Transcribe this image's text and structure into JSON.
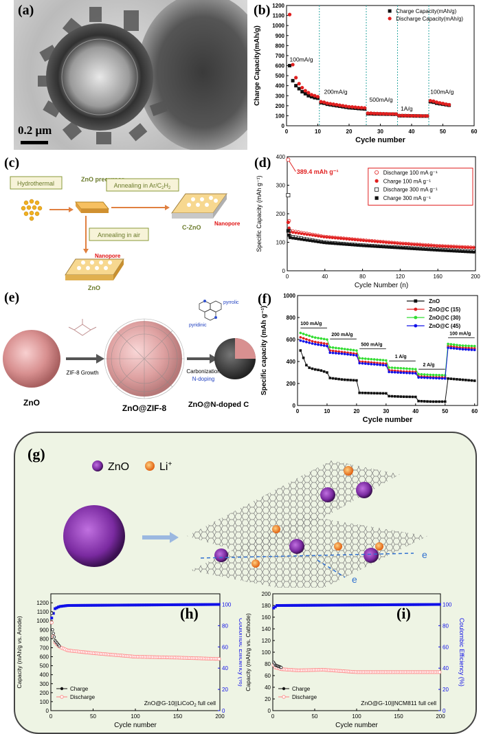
{
  "figure": {
    "labels": {
      "a": "(a)",
      "b": "(b)",
      "c": "(c)",
      "d": "(d)",
      "e": "(e)",
      "f": "(f)",
      "g": "(g)",
      "h": "(h)",
      "i": "(i)"
    },
    "scale_bar": "0.2 μm",
    "schematic_c": {
      "hydrothermal": "Hydrothermal",
      "zno_precursor": "ZnO precursor",
      "annealing_ar": "Annealing in Ar/C",
      "annealing_ar_sub1": "2",
      "annealing_ar_mid": "H",
      "annealing_ar_sub2": "2",
      "annealing_air": "Annealing in air",
      "nanopore1": "Nanopore",
      "nanopore2": "Nanopore",
      "c_zno": "C-ZnO",
      "zno": "ZnO"
    },
    "schematic_e": {
      "zno": "ZnO",
      "zif_growth": "ZIF-8 Growth",
      "zno_zif": "ZnO@ZIF-8",
      "carbonization": "Carbonization",
      "n_doping": "N-doping",
      "pyrrolic": "pyrrolic",
      "pyridinic": "pyridinic",
      "zno_ndc": "ZnO@N-doped C"
    },
    "schematic_g": {
      "legend_zno": "ZnO",
      "legend_li": "Li",
      "legend_li_sup": "+",
      "e1": "e",
      "e2": "e"
    }
  },
  "colors": {
    "red": "#e02020",
    "black": "#111111",
    "blue": "#1010e8",
    "green": "#33dd33",
    "cyan": "#3aa",
    "teal": "#2aa6a0",
    "panelBg": "#eef4e4"
  },
  "chart_data": [
    {
      "id": "b",
      "type": "scatter",
      "title": "",
      "xlabel": "Cycle number",
      "ylabel": "Charge Capacity(mAh/g)",
      "xlim": [
        0,
        60
      ],
      "ylim": [
        0,
        1200
      ],
      "xticks": [
        0,
        10,
        20,
        30,
        40,
        50,
        60
      ],
      "yticks": [
        0,
        100,
        200,
        300,
        400,
        500,
        600,
        700,
        800,
        900,
        1000,
        1100,
        1200
      ],
      "series": [
        {
          "name": "Charge Capacity(mAh/g)",
          "x": [
            1,
            2,
            3,
            4,
            5,
            6,
            7,
            8,
            9,
            10,
            11,
            12,
            13,
            14,
            15,
            16,
            17,
            18,
            19,
            20,
            21,
            22,
            23,
            24,
            25,
            26,
            27,
            28,
            29,
            30,
            31,
            32,
            33,
            34,
            35,
            36,
            37,
            38,
            39,
            40,
            41,
            42,
            43,
            44,
            45,
            46,
            47,
            48,
            49,
            50,
            51,
            52
          ],
          "y": [
            600,
            450,
            400,
            370,
            340,
            320,
            300,
            290,
            280,
            275,
            230,
            225,
            215,
            210,
            205,
            200,
            195,
            190,
            185,
            180,
            178,
            175,
            172,
            170,
            168,
            120,
            120,
            118,
            118,
            117,
            117,
            116,
            116,
            115,
            115,
            100,
            100,
            100,
            99,
            99,
            98,
            98,
            97,
            97,
            97,
            240,
            235,
            225,
            220,
            215,
            210,
            205
          ]
        },
        {
          "name": "Discharge Capacity(mAh/g)",
          "x": [
            1,
            2,
            3,
            4,
            5,
            6,
            7,
            8,
            9,
            10,
            11,
            12,
            13,
            14,
            15,
            16,
            17,
            18,
            19,
            20,
            21,
            22,
            23,
            24,
            25,
            26,
            27,
            28,
            29,
            30,
            31,
            32,
            33,
            34,
            35,
            36,
            37,
            38,
            39,
            40,
            41,
            42,
            43,
            44,
            45,
            46,
            47,
            48,
            49,
            50,
            51,
            52
          ],
          "y": [
            1110,
            610,
            480,
            420,
            380,
            350,
            330,
            310,
            300,
            290,
            240,
            235,
            225,
            220,
            215,
            210,
            205,
            200,
            195,
            190,
            188,
            185,
            182,
            180,
            178,
            125,
            125,
            123,
            122,
            121,
            120,
            119,
            118,
            118,
            117,
            102,
            102,
            101,
            101,
            100,
            100,
            99,
            99,
            98,
            98,
            250,
            245,
            235,
            228,
            222,
            215,
            210
          ]
        }
      ],
      "annotations": [
        "100mA/g",
        "200mA/g",
        "500mA/g",
        "1A/g",
        "100mA/g"
      ],
      "dividers": [
        10.5,
        25.5,
        35.5,
        45.5
      ]
    },
    {
      "id": "d",
      "type": "scatter",
      "xlabel": "Cycle Number (n)",
      "ylabel": "Specific Capacity (mAh g⁻¹)",
      "xlim": [
        0,
        200
      ],
      "ylim": [
        0,
        400
      ],
      "xticks": [
        0,
        40,
        80,
        120,
        160,
        200
      ],
      "yticks": [
        0,
        100,
        200,
        300,
        400
      ],
      "annotation": "389.4 mAh g⁻¹",
      "series": [
        {
          "name": "Discharge 100 mA g⁻¹",
          "marker": "open-circle",
          "color": "#e02020",
          "start": 389.4,
          "second": 175,
          "plateau": [
            140,
            120,
            108,
            97,
            88,
            82
          ]
        },
        {
          "name": "Charge 100 mA g⁻¹",
          "marker": "filled-circle",
          "color": "#e02020",
          "start": 170,
          "second": 150,
          "plateau": [
            135,
            118,
            106,
            95,
            86,
            80
          ]
        },
        {
          "name": "Discharge 300 mA g⁻¹",
          "marker": "open-square",
          "color": "#111111",
          "start": 265,
          "second": 140,
          "plateau": [
            120,
            100,
            90,
            82,
            75,
            68
          ]
        },
        {
          "name": "Charge 300 mA g⁻¹",
          "marker": "filled-square",
          "color": "#111111",
          "start": 140,
          "second": 125,
          "plateau": [
            115,
            98,
            88,
            80,
            72,
            65
          ]
        }
      ],
      "plateau_x": [
        5,
        40,
        80,
        120,
        160,
        200
      ]
    },
    {
      "id": "f",
      "type": "line",
      "xlabel": "Cycle number",
      "ylabel": "Specific capacity (mAh g⁻¹)",
      "xlim": [
        0,
        61
      ],
      "ylim": [
        0,
        1000
      ],
      "xticks": [
        0,
        10,
        20,
        30,
        40,
        50,
        60
      ],
      "yticks": [
        0,
        200,
        400,
        600,
        800,
        1000
      ],
      "rate_labels": [
        "100 mA/g",
        "200 mA/g",
        "500 mA/g",
        "1 A/g",
        "2 A/g",
        "100 mA/g"
      ],
      "steps": [
        [
          1,
          10
        ],
        [
          11,
          20
        ],
        [
          21,
          30
        ],
        [
          31,
          40
        ],
        [
          41,
          50
        ],
        [
          51,
          60
        ]
      ],
      "series": [
        {
          "name": "ZnO",
          "color": "#111111",
          "levels": [
            [
              500,
              350,
              330,
              320,
              300
            ],
            [
              250,
              235,
              228
            ],
            [
              115,
              112,
              110
            ],
            [
              85,
              80,
              78
            ],
            [
              40,
              35,
              35
            ],
            [
              245,
              235,
              225
            ]
          ]
        },
        {
          "name": "ZnO@C (15)",
          "color": "#e02020",
          "levels": [
            [
              620,
              580,
              560
            ],
            [
              500,
              485,
              470
            ],
            [
              400,
              390,
              380
            ],
            [
              320,
              310,
              305
            ],
            [
              265,
              258,
              255
            ],
            [
              540,
              525,
              520
            ]
          ]
        },
        {
          "name": "ZnO@C (30)",
          "color": "#33dd33",
          "levels": [
            [
              660,
              620,
              600
            ],
            [
              530,
              515,
              500
            ],
            [
              430,
              420,
              410
            ],
            [
              345,
              338,
              330
            ],
            [
              285,
              278,
              275
            ],
            [
              560,
              545,
              540
            ]
          ]
        },
        {
          "name": "ZnO@C (45)",
          "color": "#1010e8",
          "levels": [
            [
              590,
              560,
              540
            ],
            [
              480,
              470,
              455
            ],
            [
              385,
              375,
              365
            ],
            [
              305,
              298,
              292
            ],
            [
              255,
              250,
              245
            ],
            [
              525,
              512,
              505
            ]
          ]
        }
      ]
    },
    {
      "id": "h",
      "type": "scatter",
      "xlabel": "Cycle number",
      "ylabel": "Capacity (mAh/g vs. Anode)",
      "y2label": "Coulombic Efficiency (%)",
      "xlim": [
        0,
        200
      ],
      "ylim": [
        0,
        1300
      ],
      "y2lim": [
        0,
        110
      ],
      "xticks": [
        0,
        50,
        100,
        150,
        200
      ],
      "yticks": [
        0,
        100,
        200,
        300,
        400,
        500,
        600,
        700,
        800,
        900,
        1000,
        1100,
        1200
      ],
      "y2ticks": [
        0,
        20,
        40,
        60,
        80,
        100
      ],
      "legend": [
        "Charge",
        "Discharge"
      ],
      "cell_label": "ZnO@G-10||LiCoO",
      "cell_sub": "2",
      "cell_suffix": " full cell",
      "charge": {
        "x": [
          0,
          2,
          5,
          10,
          20,
          25,
          50,
          100,
          150,
          200
        ],
        "y": [
          1270,
          900,
          780,
          720,
          690,
          700,
          650,
          600,
          590,
          580
        ]
      },
      "discharge": {
        "x": [
          0,
          2,
          5,
          10,
          20,
          50,
          100,
          150,
          200
        ],
        "y": [
          1100,
          860,
          760,
          710,
          670,
          640,
          600,
          590,
          575
        ]
      },
      "ce": {
        "x": [
          0,
          5,
          10,
          20,
          200
        ],
        "y": [
          85,
          96,
          98,
          99,
          100
        ]
      }
    },
    {
      "id": "i",
      "type": "scatter",
      "xlabel": "Cycle number",
      "ylabel": "Capacity (mAh/g vs. Cathode)",
      "y2label": "Coulombic Efficiency (%)",
      "xlim": [
        0,
        200
      ],
      "ylim": [
        0,
        200
      ],
      "y2lim": [
        0,
        110
      ],
      "xticks": [
        0,
        50,
        100,
        150,
        200
      ],
      "yticks": [
        0,
        20,
        40,
        60,
        80,
        100,
        120,
        140,
        160,
        180,
        200
      ],
      "y2ticks": [
        0,
        20,
        40,
        60,
        80,
        100
      ],
      "legend": [
        "Charge",
        "Discharge"
      ],
      "cell_label": "ZnO@G-10||NCM811  full cell",
      "charge": {
        "x": [
          0,
          3,
          10,
          30,
          60,
          100,
          150,
          200
        ],
        "y": [
          85,
          78,
          74,
          71,
          72,
          68,
          68,
          68
        ]
      },
      "discharge": {
        "x": [
          0,
          3,
          10,
          30,
          60,
          100,
          150,
          200
        ],
        "y": [
          80,
          74,
          71,
          69,
          70,
          66,
          66,
          66
        ]
      },
      "ce": {
        "x": [
          0,
          5,
          10,
          200
        ],
        "y": [
          96,
          99,
          99,
          100
        ]
      }
    }
  ]
}
